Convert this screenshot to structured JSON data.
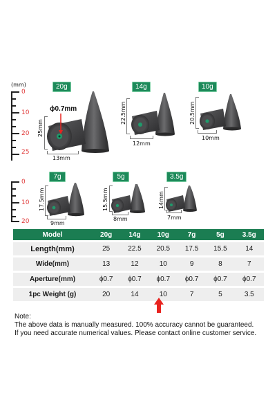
{
  "top_ruler": {
    "unit": "(mm)",
    "ticks": [
      "0",
      "10",
      "20",
      "25"
    ]
  },
  "bottom_ruler": {
    "ticks": [
      "0",
      "10",
      "20"
    ]
  },
  "sinkers": [
    {
      "label": "20g",
      "length": "25mm",
      "width": "13mm",
      "aperture": "ϕ0.7mm"
    },
    {
      "label": "14g",
      "length": "22.5mm",
      "width": "12mm"
    },
    {
      "label": "10g",
      "length": "20.5mm",
      "width": "10mm"
    },
    {
      "label": "7g",
      "length": "17.5mm",
      "width": "9mm"
    },
    {
      "label": "5g",
      "length": "15.5mm",
      "width": "8mm"
    },
    {
      "label": "3.5g",
      "length": "14mm",
      "width": "7mm"
    }
  ],
  "table": {
    "headers": [
      "Model",
      "20g",
      "14g",
      "10g",
      "7g",
      "5g",
      "3.5g"
    ],
    "rows": [
      {
        "label": "Length(mm)",
        "values": [
          "25",
          "22.5",
          "20.5",
          "17.5",
          "15.5",
          "14"
        ]
      },
      {
        "label": "Wide(mm)",
        "values": [
          "13",
          "12",
          "10",
          "9",
          "8",
          "7"
        ]
      },
      {
        "label": "Aperture(mm)",
        "values": [
          "ϕ0.7",
          "ϕ0.7",
          "ϕ0.7",
          "ϕ0.7",
          "ϕ0.7",
          "ϕ0.7"
        ]
      },
      {
        "label": "1pc Weight (g)",
        "values": [
          "20",
          "14",
          "10",
          "7",
          "5",
          "3.5"
        ]
      }
    ]
  },
  "note": {
    "title": "Note:",
    "line1": "The above data is manually measured. 100% accuracy cannot be guaranteed.",
    "line2": "If you need accurate numerical values. Please contact online customer service."
  },
  "colors": {
    "accent_green": "#1d8a5a",
    "header_green": "#1b7d52",
    "arrow_red": "#e8231f",
    "ruler_number": "#e03a3a",
    "row_gray": "#eeeeee"
  }
}
